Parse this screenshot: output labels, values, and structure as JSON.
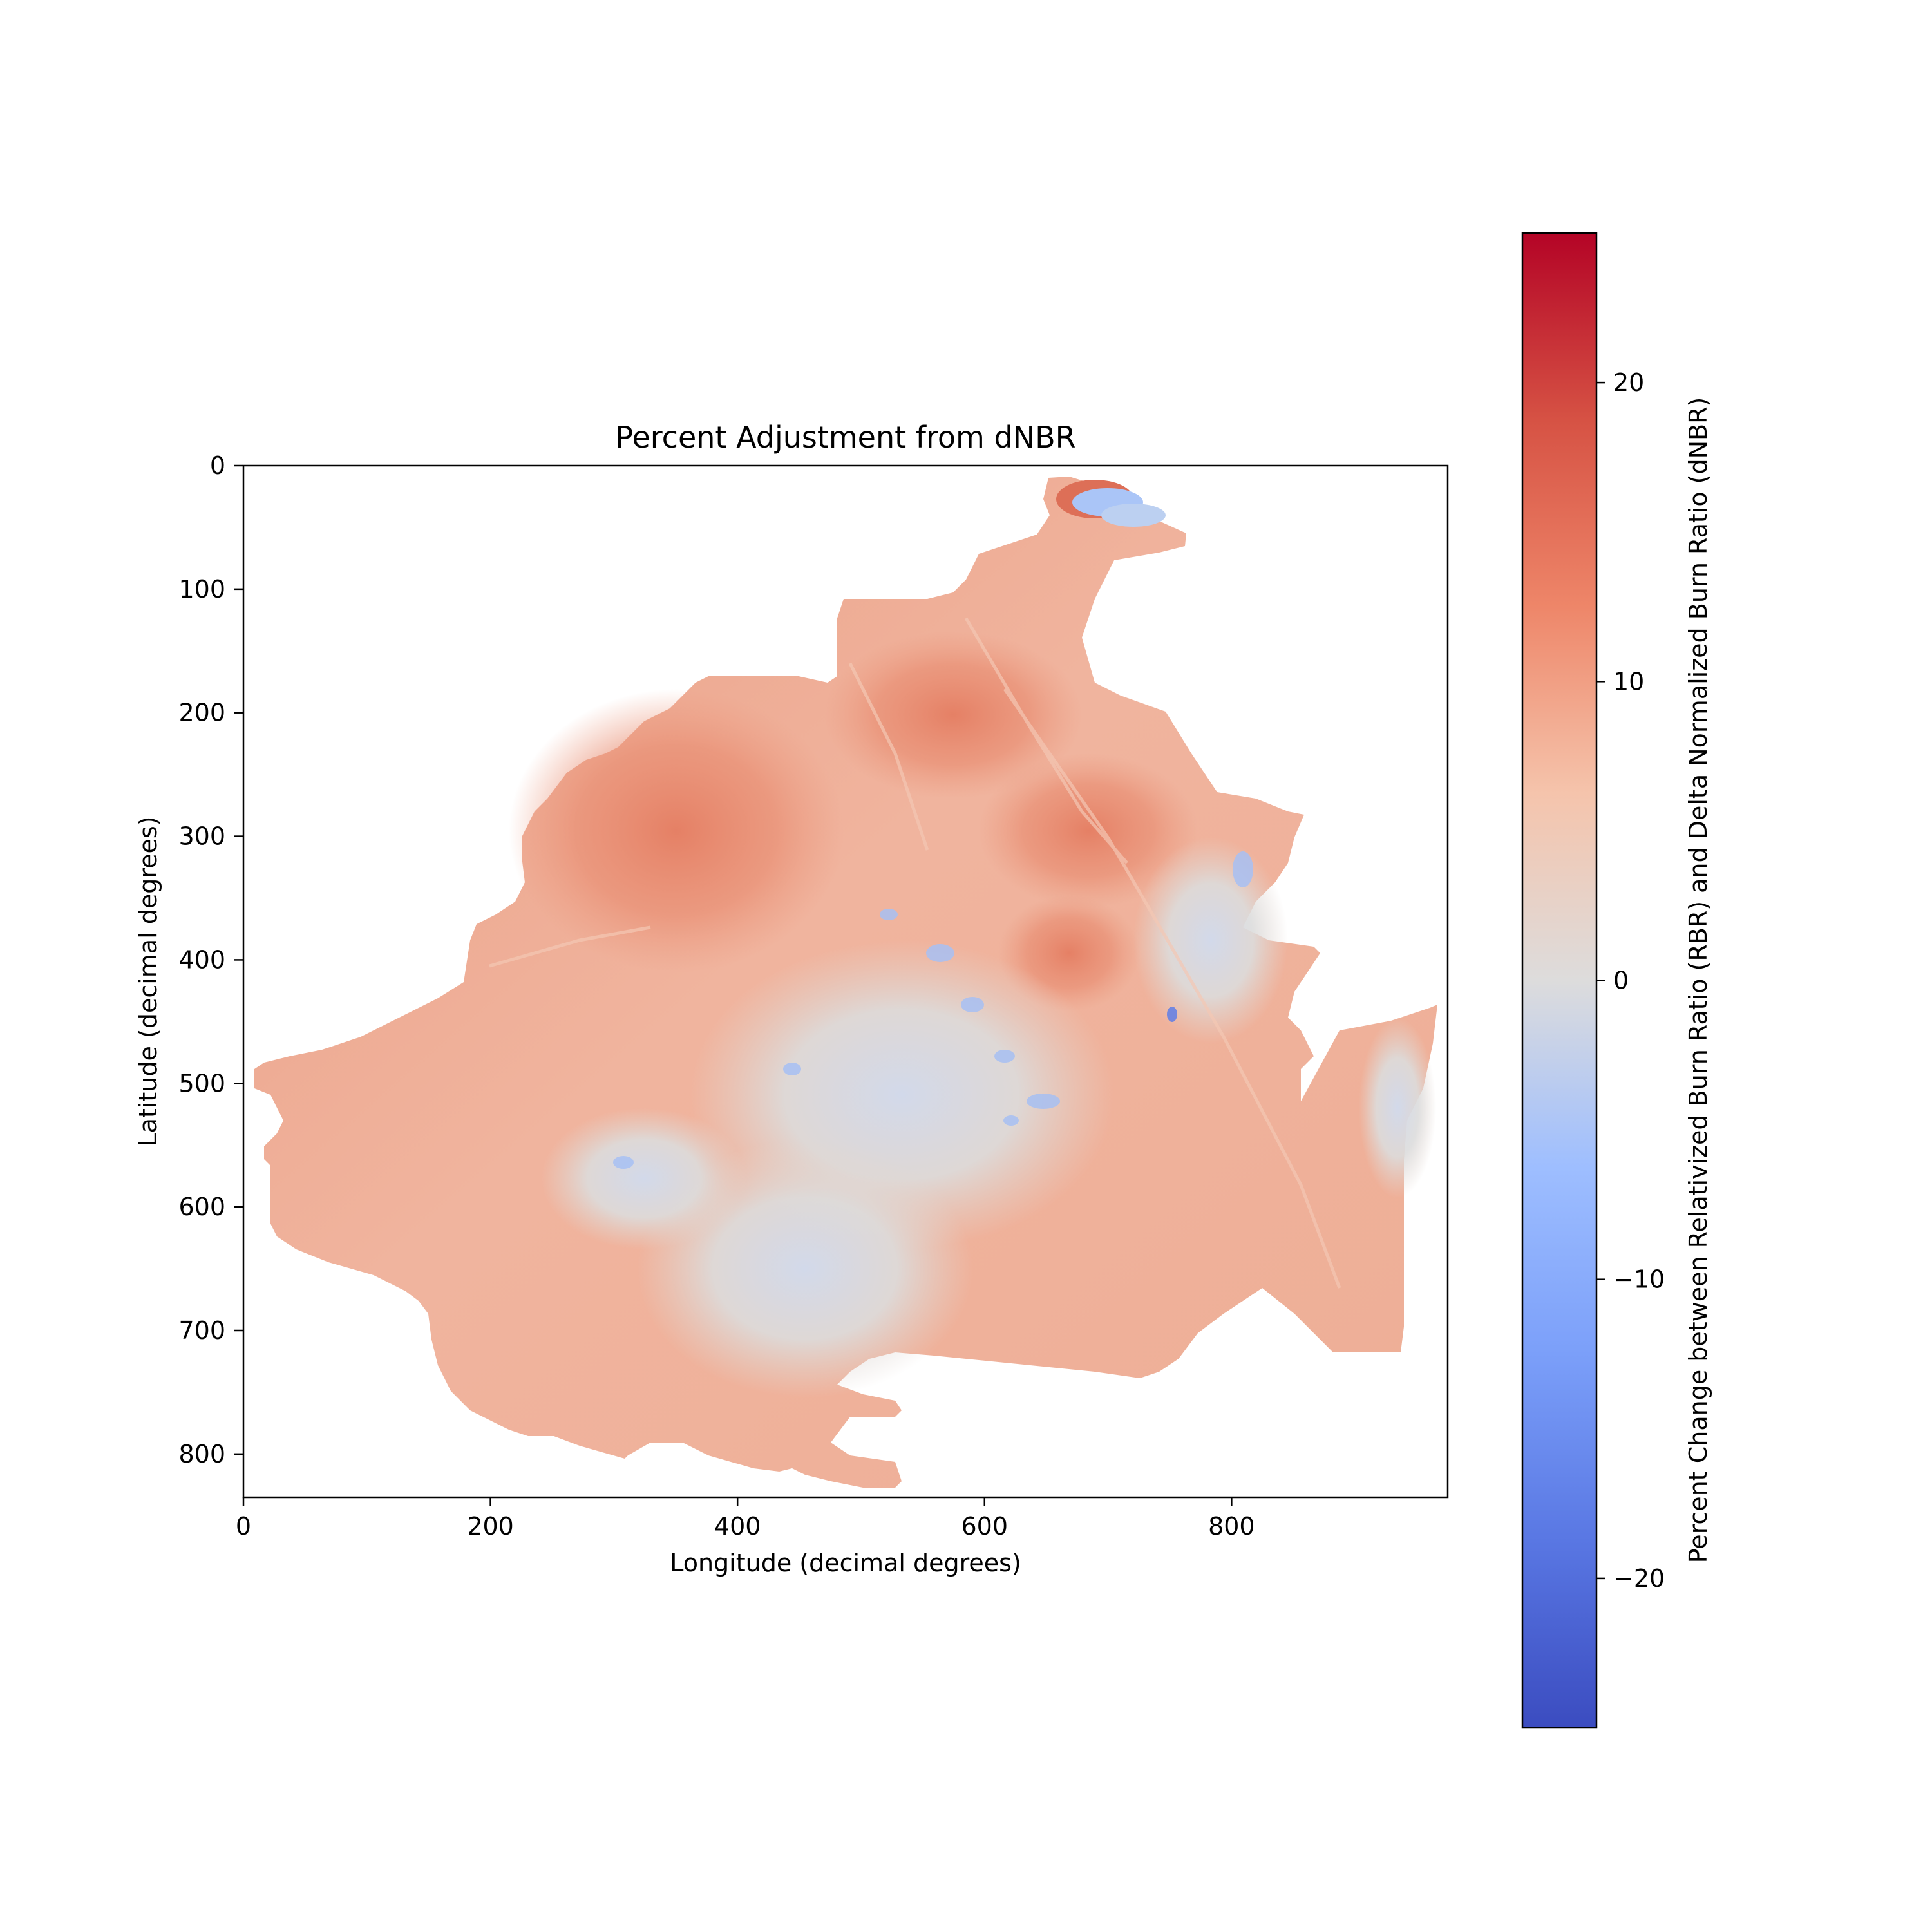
{
  "chart_data": {
    "type": "heatmap",
    "title": "Percent Adjustment from dNBR",
    "xlabel": "Longitude (decimal degrees)",
    "ylabel": "Latitude (decimal degrees)",
    "xlim": [
      0,
      975
    ],
    "ylim": [
      835,
      0
    ],
    "x_ticks": [
      0,
      200,
      400,
      600,
      800
    ],
    "y_ticks": [
      0,
      100,
      200,
      300,
      400,
      500,
      600,
      700,
      800
    ],
    "grid": false,
    "colorbar": {
      "label": "Percent Change between Relativized Burn Ratio (RBR) and Delta Normalized Burn Ratio (dNBR)",
      "colormap": "coolwarm",
      "vmin": -25,
      "vmax": 25,
      "ticks": [
        20,
        10,
        0,
        -10,
        -20
      ],
      "tick_labels": [
        "20",
        "10",
        "0",
        "−10",
        "−20"
      ],
      "colors": {
        "low": "#3b4cc0",
        "mid": "#dddddd",
        "high": "#b40426"
      }
    },
    "regions": [
      {
        "name": "main burn area",
        "approx_value": 7
      },
      {
        "name": "northwest high-adjustment zone",
        "approx_value": 12
      },
      {
        "name": "central low-adjustment band",
        "approx_value": 0
      },
      {
        "name": "central scattered negative patches",
        "approx_value": -8
      },
      {
        "name": "northern tip lake",
        "approx_value": -8
      },
      {
        "name": "northern tip margin",
        "approx_value": 17
      }
    ]
  }
}
